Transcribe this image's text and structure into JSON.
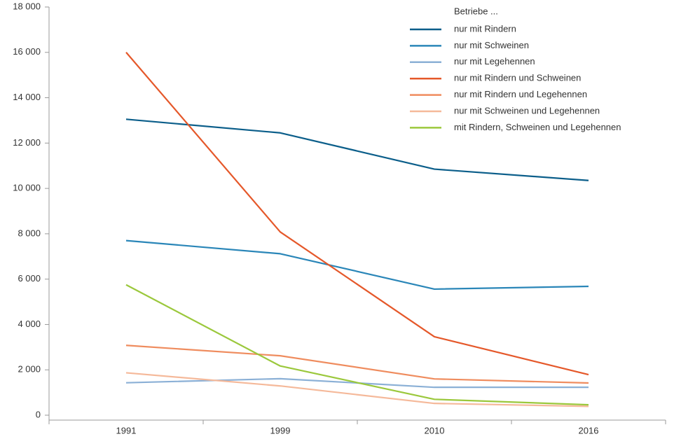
{
  "chart_data": {
    "type": "line",
    "categories": [
      "1991",
      "1999",
      "2010",
      "2016"
    ],
    "legend_title": "Betriebe ...",
    "series": [
      {
        "name": "nur mit Rindern",
        "color": "#0b5e8a",
        "values": [
          13050,
          12450,
          10850,
          10350
        ]
      },
      {
        "name": "nur mit Schweinen",
        "color": "#2a86b8",
        "values": [
          7700,
          7120,
          5560,
          5680
        ]
      },
      {
        "name": "nur mit Legehennen",
        "color": "#8bb0d6",
        "values": [
          1430,
          1610,
          1230,
          1230
        ]
      },
      {
        "name": "nur mit Rindern und Schweinen",
        "color": "#e5582a",
        "values": [
          16000,
          8080,
          3460,
          1790
        ]
      },
      {
        "name": "nur mit Rindern und Legehennen",
        "color": "#ef8c5e",
        "values": [
          3080,
          2620,
          1600,
          1420
        ]
      },
      {
        "name": "nur mit Schweinen und Legehennen",
        "color": "#f5b99a",
        "values": [
          1870,
          1290,
          520,
          390
        ]
      },
      {
        "name": "mit Rindern, Schweinen und Legehennen",
        "color": "#9bc83c",
        "values": [
          5750,
          2170,
          700,
          460
        ]
      }
    ],
    "ylim": [
      0,
      18000
    ],
    "yticks": [
      0,
      {
        "value": 2000,
        "label": "2 000"
      },
      {
        "value": 4000,
        "label": "4 000"
      },
      {
        "value": 6000,
        "label": "6 000"
      },
      {
        "value": 8000,
        "label": "8 000"
      },
      {
        "value": 10000,
        "label": "10 000"
      },
      {
        "value": 12000,
        "label": "12 000"
      },
      {
        "value": 14000,
        "label": "14 000"
      },
      {
        "value": 16000,
        "label": "16 000"
      },
      {
        "value": 18000,
        "label": "18 000"
      }
    ],
    "legend": "top-right"
  }
}
